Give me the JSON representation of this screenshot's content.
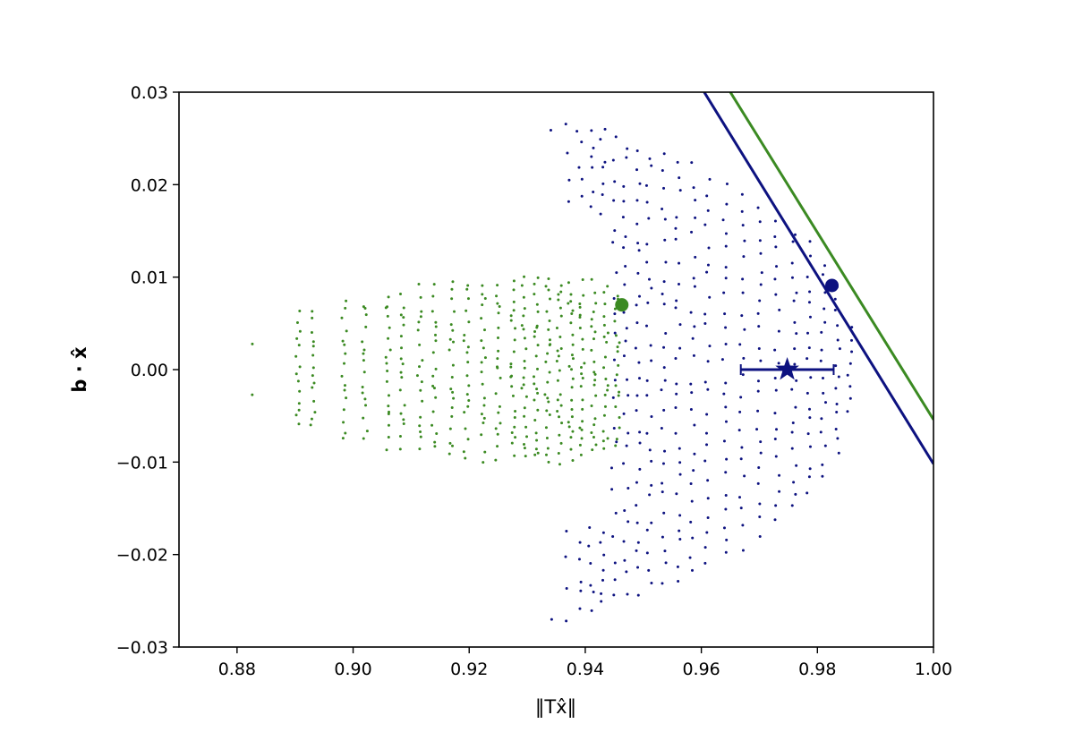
{
  "chart_data": {
    "type": "scatter",
    "xlabel": "‖Tx̂‖",
    "ylabel": "b · x̂",
    "xlim": [
      0.87,
      1.0
    ],
    "ylim": [
      -0.03,
      0.03
    ],
    "x_ticks": [
      "0.88",
      "0.90",
      "0.92",
      "0.94",
      "0.96",
      "0.98",
      "1.00"
    ],
    "x_tick_values": [
      0.88,
      0.9,
      0.92,
      0.94,
      0.96,
      0.98,
      1.0
    ],
    "y_ticks": [
      "0.03",
      "0.02",
      "0.01",
      "0.00",
      "−0.01",
      "−0.02",
      "−0.03"
    ],
    "y_tick_values": [
      0.03,
      0.02,
      0.01,
      0.0,
      -0.01,
      -0.02,
      -0.03
    ],
    "grid": false,
    "colors": {
      "navy": "#0d1280",
      "green": "#3b8a22"
    },
    "clouds": [
      {
        "color": "green",
        "columns": [
          {
            "x": 0.8825,
            "count": 2,
            "spread": 0.0028,
            "shape": "edges"
          },
          {
            "x": 0.8905,
            "count": 14,
            "spread": 0.0062,
            "shape": "wave"
          },
          {
            "x": 0.893,
            "count": 14,
            "spread": 0.0062,
            "shape": "wave"
          },
          {
            "x": 0.8985,
            "count": 16,
            "spread": 0.0073,
            "shape": "wave"
          },
          {
            "x": 0.902,
            "count": 16,
            "spread": 0.0073,
            "shape": "wave"
          },
          {
            "x": 0.906,
            "count": 18,
            "spread": 0.0083,
            "shape": "wave"
          },
          {
            "x": 0.9085,
            "count": 18,
            "spread": 0.0083,
            "shape": "wave"
          },
          {
            "x": 0.9115,
            "count": 18,
            "spread": 0.0088,
            "shape": "wave"
          },
          {
            "x": 0.914,
            "count": 18,
            "spread": 0.0088,
            "shape": "wave"
          },
          {
            "x": 0.917,
            "count": 20,
            "spread": 0.0092,
            "shape": "wave"
          },
          {
            "x": 0.9195,
            "count": 20,
            "spread": 0.0092,
            "shape": "wave"
          },
          {
            "x": 0.9225,
            "count": 20,
            "spread": 0.0094,
            "shape": "wave"
          },
          {
            "x": 0.925,
            "count": 20,
            "spread": 0.0094,
            "shape": "wave"
          },
          {
            "x": 0.9275,
            "count": 22,
            "spread": 0.0095,
            "shape": "wave"
          },
          {
            "x": 0.9295,
            "count": 22,
            "spread": 0.0096,
            "shape": "wave"
          },
          {
            "x": 0.9315,
            "count": 24,
            "spread": 0.0097,
            "shape": "wave"
          },
          {
            "x": 0.9335,
            "count": 24,
            "spread": 0.0097,
            "shape": "wave"
          },
          {
            "x": 0.9355,
            "count": 24,
            "spread": 0.0097,
            "shape": "wave"
          },
          {
            "x": 0.9375,
            "count": 24,
            "spread": 0.0096,
            "shape": "wave"
          },
          {
            "x": 0.9395,
            "count": 22,
            "spread": 0.0095,
            "shape": "wave"
          },
          {
            "x": 0.9415,
            "count": 22,
            "spread": 0.0092,
            "shape": "wave"
          },
          {
            "x": 0.9435,
            "count": 20,
            "spread": 0.0088,
            "shape": "wave"
          },
          {
            "x": 0.9455,
            "count": 18,
            "spread": 0.008,
            "shape": "wave"
          }
        ]
      },
      {
        "color": "navy",
        "columns": [
          {
            "x": 0.9345,
            "count": 2,
            "spread": 0.0265,
            "shape": "edges"
          },
          {
            "x": 0.937,
            "count": 8,
            "spread": 0.0265,
            "shape": "wings"
          },
          {
            "x": 0.939,
            "count": 10,
            "spread": 0.0265,
            "shape": "wings"
          },
          {
            "x": 0.941,
            "count": 12,
            "spread": 0.0262,
            "shape": "wings"
          },
          {
            "x": 0.943,
            "count": 14,
            "spread": 0.0258,
            "shape": "wings"
          },
          {
            "x": 0.945,
            "count": 22,
            "spread": 0.025,
            "shape": "uniform"
          },
          {
            "x": 0.947,
            "count": 26,
            "spread": 0.0242,
            "shape": "uniform"
          },
          {
            "x": 0.949,
            "count": 26,
            "spread": 0.0238,
            "shape": "uniform"
          },
          {
            "x": 0.951,
            "count": 26,
            "spread": 0.0235,
            "shape": "uniform"
          },
          {
            "x": 0.9535,
            "count": 26,
            "spread": 0.023,
            "shape": "uniform"
          },
          {
            "x": 0.956,
            "count": 26,
            "spread": 0.0225,
            "shape": "uniform"
          },
          {
            "x": 0.9585,
            "count": 24,
            "spread": 0.0218,
            "shape": "uniform"
          },
          {
            "x": 0.961,
            "count": 24,
            "spread": 0.021,
            "shape": "uniform"
          },
          {
            "x": 0.964,
            "count": 24,
            "spread": 0.02,
            "shape": "uniform"
          },
          {
            "x": 0.967,
            "count": 22,
            "spread": 0.019,
            "shape": "uniform"
          },
          {
            "x": 0.97,
            "count": 22,
            "spread": 0.0178,
            "shape": "uniform"
          },
          {
            "x": 0.973,
            "count": 20,
            "spread": 0.0165,
            "shape": "uniform"
          },
          {
            "x": 0.976,
            "count": 20,
            "spread": 0.015,
            "shape": "uniform"
          },
          {
            "x": 0.9785,
            "count": 18,
            "spread": 0.0135,
            "shape": "uniform"
          },
          {
            "x": 0.981,
            "count": 16,
            "spread": 0.0115,
            "shape": "uniform"
          },
          {
            "x": 0.9835,
            "count": 14,
            "spread": 0.009,
            "shape": "uniform"
          },
          {
            "x": 0.9855,
            "count": 8,
            "spread": 0.0045,
            "shape": "uniform"
          }
        ]
      }
    ],
    "lines": [
      {
        "color": "navy",
        "points": [
          [
            0.9605,
            0.03
          ],
          [
            1.0,
            -0.0102
          ]
        ]
      },
      {
        "color": "green",
        "points": [
          [
            0.965,
            0.03
          ],
          [
            1.0,
            -0.0054
          ]
        ]
      }
    ],
    "markers": [
      {
        "color": "green",
        "shape": "circle",
        "x": 0.9463,
        "y": 0.007
      },
      {
        "color": "navy",
        "shape": "circle",
        "x": 0.9825,
        "y": 0.0091
      },
      {
        "color": "navy",
        "shape": "star",
        "x": 0.9748,
        "y": 0.0,
        "xerr_low": 0.9668,
        "xerr_high": 0.9828
      }
    ]
  }
}
